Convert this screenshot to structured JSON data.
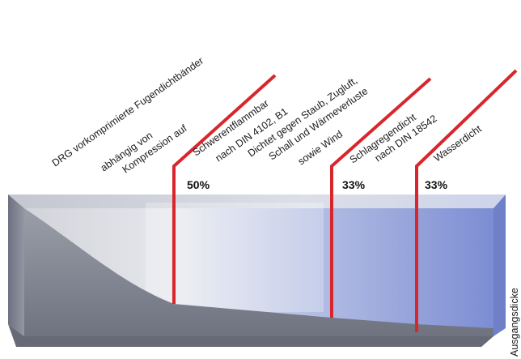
{
  "labels": {
    "line1": "DRG vorkomprimierte  Fugendichtbänder",
    "line2": "abhängig von",
    "line3": "Kompression auf",
    "zone1": [
      "Schwerentflammbar",
      "nach DIN 4102, B1",
      "Dichtet gegen Staub, Zugluft,",
      "Schall und Wärmeverluste",
      "sowie Wind"
    ],
    "zone2": [
      "Schlagregendicht",
      "nach DIN 18542"
    ],
    "zone3": [
      "Wasserdicht"
    ]
  },
  "percentages": [
    "50%",
    "33%",
    "33%"
  ],
  "side_label": "Ausgangsdicke",
  "colors": {
    "marker_line": "#d8262c",
    "foam_gray": "#c9cdd7",
    "foam_blue": "#7e8fd1",
    "foam_dark": "#7a7f8e"
  }
}
